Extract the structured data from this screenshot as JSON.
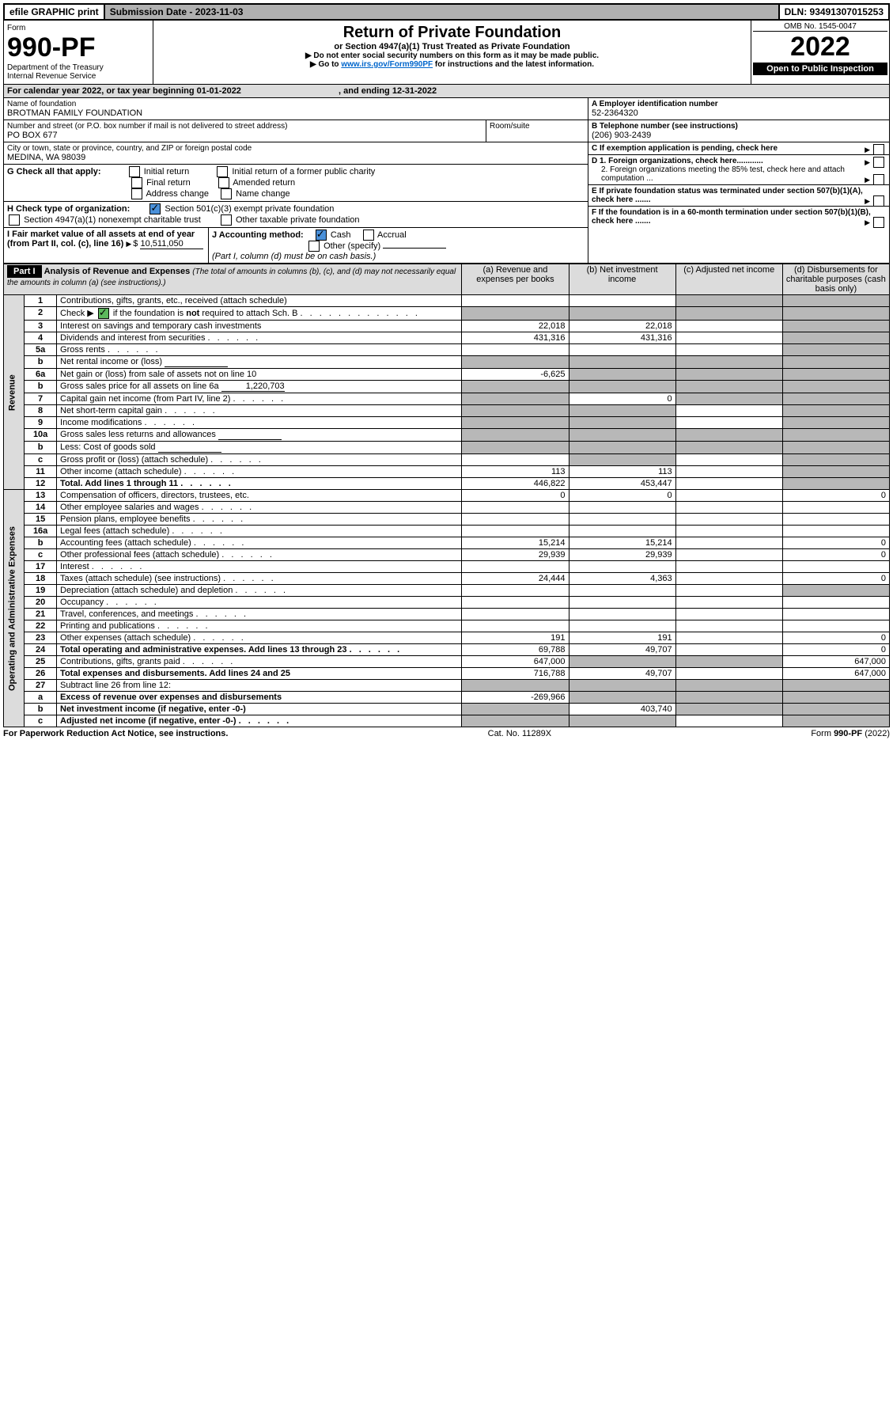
{
  "topbar": {
    "efile": "efile GRAPHIC print",
    "submission": "Submission Date - 2023-11-03",
    "dln": "DLN: 93491307015253"
  },
  "header": {
    "form_label": "Form",
    "form_number": "990-PF",
    "dept": "Department of the Treasury",
    "irs": "Internal Revenue Service",
    "title": "Return of Private Foundation",
    "subtitle": "or Section 4947(a)(1) Trust Treated as Private Foundation",
    "note1": "▶ Do not enter social security numbers on this form as it may be made public.",
    "note2_pre": "▶ Go to ",
    "note2_link": "www.irs.gov/Form990PF",
    "note2_post": " for instructions and the latest information.",
    "omb": "OMB No. 1545-0047",
    "year": "2022",
    "open": "Open to Public Inspection"
  },
  "cal": {
    "text_pre": "For calendar year 2022, or tax year beginning ",
    "begin": "01-01-2022",
    "mid": " , and ending ",
    "end": "12-31-2022"
  },
  "id": {
    "name_label": "Name of foundation",
    "name": "BROTMAN FAMILY FOUNDATION",
    "addr_label": "Number and street (or P.O. box number if mail is not delivered to street address)",
    "addr": "PO BOX 677",
    "room_label": "Room/suite",
    "city_label": "City or town, state or province, country, and ZIP or foreign postal code",
    "city": "MEDINA, WA  98039",
    "a_label": "A Employer identification number",
    "a_val": "52-2364320",
    "b_label": "B Telephone number (see instructions)",
    "b_val": "(206) 903-2439",
    "c_label": "C If exemption application is pending, check here",
    "d1": "D 1. Foreign organizations, check here............",
    "d2": "2. Foreign organizations meeting the 85% test, check here and attach computation ...",
    "e": "E  If private foundation status was terminated under section 507(b)(1)(A), check here .......",
    "f": "F  If the foundation is in a 60-month termination under section 507(b)(1)(B), check here .......",
    "g_label": "G Check all that apply:",
    "g_opts": [
      "Initial return",
      "Initial return of a former public charity",
      "Final return",
      "Amended return",
      "Address change",
      "Name change"
    ],
    "h_label": "H Check type of organization:",
    "h1": "Section 501(c)(3) exempt private foundation",
    "h2": "Section 4947(a)(1) nonexempt charitable trust",
    "h3": "Other taxable private foundation",
    "i_label": "I Fair market value of all assets at end of year (from Part II, col. (c), line 16)",
    "i_val": "10,511,050",
    "j_label": "J Accounting method:",
    "j_cash": "Cash",
    "j_accrual": "Accrual",
    "j_other": "Other (specify)",
    "j_note": "(Part I, column (d) must be on cash basis.)"
  },
  "part1": {
    "label": "Part I",
    "title": "Analysis of Revenue and Expenses",
    "title_note": "(The total of amounts in columns (b), (c), and (d) may not necessarily equal the amounts in column (a) (see instructions).)",
    "cols": {
      "a": "(a)  Revenue and expenses per books",
      "b": "(b)  Net investment income",
      "c": "(c)  Adjusted net income",
      "d": "(d)  Disbursements for charitable purposes (cash basis only)"
    }
  },
  "side": {
    "revenue": "Revenue",
    "expenses": "Operating and Administrative Expenses"
  },
  "lines": [
    {
      "n": "1",
      "d": "Contributions, gifts, grants, etc., received (attach schedule)",
      "a": "",
      "b": "",
      "c": "gray",
      "dd": "gray"
    },
    {
      "n": "2",
      "d": "Check ▶ [x] if the foundation is not required to attach Sch. B",
      "a": "gray",
      "b": "gray",
      "c": "gray",
      "dd": "gray",
      "dots": true
    },
    {
      "n": "3",
      "d": "Interest on savings and temporary cash investments",
      "a": "22,018",
      "b": "22,018",
      "c": "",
      "dd": "gray"
    },
    {
      "n": "4",
      "d": "Dividends and interest from securities",
      "a": "431,316",
      "b": "431,316",
      "c": "",
      "dd": "gray",
      "dots": true
    },
    {
      "n": "5a",
      "d": "Gross rents",
      "a": "",
      "b": "",
      "c": "",
      "dd": "gray",
      "dots": true
    },
    {
      "n": "b",
      "d": "Net rental income or (loss)",
      "a": "gray",
      "b": "gray",
      "c": "gray",
      "dd": "gray",
      "inset": true
    },
    {
      "n": "6a",
      "d": "Net gain or (loss) from sale of assets not on line 10",
      "a": "-6,625",
      "b": "gray",
      "c": "gray",
      "dd": "gray"
    },
    {
      "n": "b",
      "d": "Gross sales price for all assets on line 6a",
      "a": "gray",
      "b": "gray",
      "c": "gray",
      "dd": "gray",
      "inset": true,
      "inset_val": "1,220,703"
    },
    {
      "n": "7",
      "d": "Capital gain net income (from Part IV, line 2)",
      "a": "gray",
      "b": "0",
      "c": "gray",
      "dd": "gray",
      "dots": true
    },
    {
      "n": "8",
      "d": "Net short-term capital gain",
      "a": "gray",
      "b": "gray",
      "c": "",
      "dd": "gray",
      "dots": true
    },
    {
      "n": "9",
      "d": "Income modifications",
      "a": "gray",
      "b": "gray",
      "c": "",
      "dd": "gray",
      "dots": true
    },
    {
      "n": "10a",
      "d": "Gross sales less returns and allowances",
      "a": "gray",
      "b": "gray",
      "c": "gray",
      "dd": "gray",
      "inset": true
    },
    {
      "n": "b",
      "d": "Less: Cost of goods sold",
      "a": "gray",
      "b": "gray",
      "c": "gray",
      "dd": "gray",
      "inset": true,
      "dots": true
    },
    {
      "n": "c",
      "d": "Gross profit or (loss) (attach schedule)",
      "a": "",
      "b": "gray",
      "c": "",
      "dd": "gray",
      "dots": true
    },
    {
      "n": "11",
      "d": "Other income (attach schedule)",
      "a": "113",
      "b": "113",
      "c": "",
      "dd": "gray",
      "dots": true
    },
    {
      "n": "12",
      "d": "Total. Add lines 1 through 11",
      "a": "446,822",
      "b": "453,447",
      "c": "",
      "dd": "gray",
      "bold": true,
      "dots": true
    }
  ],
  "explines": [
    {
      "n": "13",
      "d": "Compensation of officers, directors, trustees, etc.",
      "a": "0",
      "b": "0",
      "c": "",
      "dd": "0"
    },
    {
      "n": "14",
      "d": "Other employee salaries and wages",
      "a": "",
      "b": "",
      "c": "",
      "dd": "",
      "dots": true
    },
    {
      "n": "15",
      "d": "Pension plans, employee benefits",
      "a": "",
      "b": "",
      "c": "",
      "dd": "",
      "dots": true
    },
    {
      "n": "16a",
      "d": "Legal fees (attach schedule)",
      "a": "",
      "b": "",
      "c": "",
      "dd": "",
      "dots": true
    },
    {
      "n": "b",
      "d": "Accounting fees (attach schedule)",
      "a": "15,214",
      "b": "15,214",
      "c": "",
      "dd": "0",
      "dots": true
    },
    {
      "n": "c",
      "d": "Other professional fees (attach schedule)",
      "a": "29,939",
      "b": "29,939",
      "c": "",
      "dd": "0",
      "dots": true
    },
    {
      "n": "17",
      "d": "Interest",
      "a": "",
      "b": "",
      "c": "",
      "dd": "",
      "dots": true
    },
    {
      "n": "18",
      "d": "Taxes (attach schedule) (see instructions)",
      "a": "24,444",
      "b": "4,363",
      "c": "",
      "dd": "0",
      "dots": true
    },
    {
      "n": "19",
      "d": "Depreciation (attach schedule) and depletion",
      "a": "",
      "b": "",
      "c": "",
      "dd": "gray",
      "dots": true
    },
    {
      "n": "20",
      "d": "Occupancy",
      "a": "",
      "b": "",
      "c": "",
      "dd": "",
      "dots": true
    },
    {
      "n": "21",
      "d": "Travel, conferences, and meetings",
      "a": "",
      "b": "",
      "c": "",
      "dd": "",
      "dots": true
    },
    {
      "n": "22",
      "d": "Printing and publications",
      "a": "",
      "b": "",
      "c": "",
      "dd": "",
      "dots": true
    },
    {
      "n": "23",
      "d": "Other expenses (attach schedule)",
      "a": "191",
      "b": "191",
      "c": "",
      "dd": "0",
      "dots": true
    },
    {
      "n": "24",
      "d": "Total operating and administrative expenses. Add lines 13 through 23",
      "a": "69,788",
      "b": "49,707",
      "c": "",
      "dd": "0",
      "bold": true,
      "dots": true
    },
    {
      "n": "25",
      "d": "Contributions, gifts, grants paid",
      "a": "647,000",
      "b": "gray",
      "c": "gray",
      "dd": "647,000",
      "dots": true
    },
    {
      "n": "26",
      "d": "Total expenses and disbursements. Add lines 24 and 25",
      "a": "716,788",
      "b": "49,707",
      "c": "",
      "dd": "647,000",
      "bold": true
    },
    {
      "n": "27",
      "d": "Subtract line 26 from line 12:",
      "a": "gray",
      "b": "gray",
      "c": "gray",
      "dd": "gray"
    },
    {
      "n": "a",
      "d": "Excess of revenue over expenses and disbursements",
      "a": "-269,966",
      "b": "gray",
      "c": "gray",
      "dd": "gray",
      "bold": true
    },
    {
      "n": "b",
      "d": "Net investment income (if negative, enter -0-)",
      "a": "gray",
      "b": "403,740",
      "c": "gray",
      "dd": "gray",
      "bold": true
    },
    {
      "n": "c",
      "d": "Adjusted net income (if negative, enter -0-)",
      "a": "gray",
      "b": "gray",
      "c": "",
      "dd": "gray",
      "bold": true,
      "dots": true
    }
  ],
  "footer": {
    "left": "For Paperwork Reduction Act Notice, see instructions.",
    "mid": "Cat. No. 11289X",
    "right": "Form 990-PF (2022)"
  }
}
